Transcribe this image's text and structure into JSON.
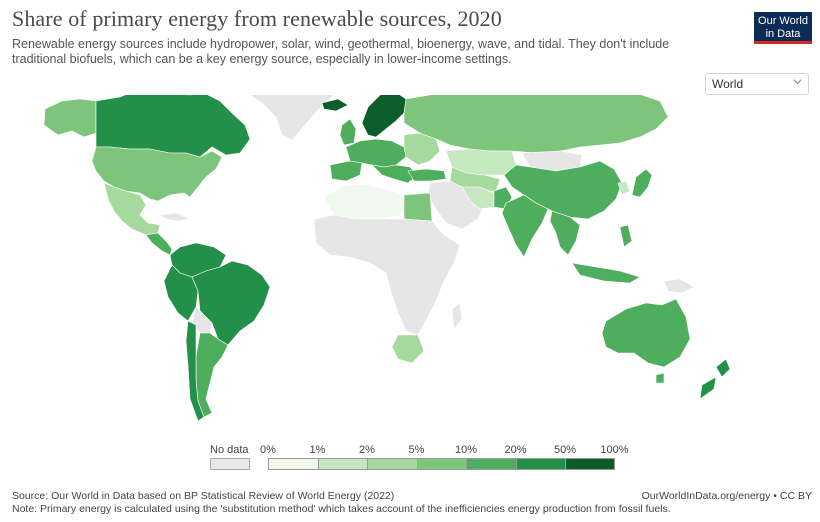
{
  "header": {
    "title": "Share of primary energy from renewable sources, 2020",
    "subtitle": "Renewable energy sources include hydropower, solar, wind, geothermal, bioenergy, wave, and tidal. They don't include traditional biofuels, which can be a key energy source, especially in lower-income settings."
  },
  "logo": {
    "line1": "Our World",
    "line2": "in Data",
    "bg_color": "#0c2b56",
    "accent_color": "#d42b21"
  },
  "region_selector": {
    "selected": "World",
    "icon": "chevron-down-icon"
  },
  "legend": {
    "no_data_label": "No data",
    "no_data_color": "#e9e9e9",
    "ticks": [
      "0%",
      "1%",
      "2%",
      "5%",
      "10%",
      "20%",
      "50%",
      "100%"
    ],
    "colors": [
      "#f1f9ee",
      "#c6e8c0",
      "#a5d99e",
      "#7cc57a",
      "#4fae5e",
      "#23904a",
      "#0b5d2a"
    ]
  },
  "footer": {
    "source": "Source: Our World in Data based on BP Statistical Review of World Energy (2022)",
    "note": "Note: Primary energy is calculated using the 'substitution method' which takes account of the inefficiencies energy production from fossil fuels.",
    "credit": "OurWorldInData.org/energy • CC BY"
  }
}
